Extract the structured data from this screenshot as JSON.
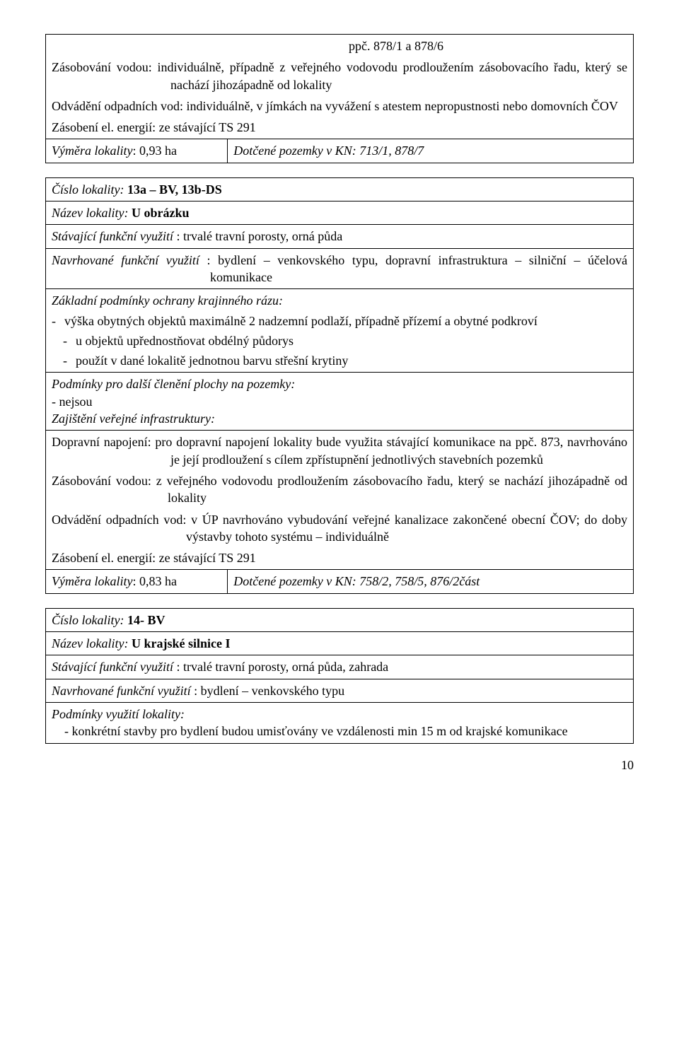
{
  "box1": {
    "ppc_line": "ppč. 878/1 a 878/6",
    "zasob_vodou": "Zásobování vodou: individuálně, případně z veřejného vodovodu prodloužením zásobovacího řadu, který se nachází jihozápadně od lokality",
    "odv_vod": "Odvádění odpadních vod: individuálně, v jímkách na vyvážení s atestem nepropustnosti nebo domovních ČOV",
    "zasob_el": "Zásobení el. energií: ze stávající TS 291",
    "vymera_label": "Výměra lokality",
    "vymera_val": ": 0,93 ha",
    "dotcene": "Dotčené pozemky v KN: 713/1, 878/7"
  },
  "box2": {
    "cislo_label": "Číslo lokality:",
    "cislo_val": " 13a – BV, 13b-DS",
    "nazev_label": "Název lokality:",
    "nazev_val": "   U obrázku",
    "stav_label": "Stávající funkční využití",
    "stav_rest": " : trvalé travní porosty, orná půda",
    "navrh_label": "Navrhované funkční využití",
    "navrh_rest": " : bydlení – venkovského typu, dopravní infrastruktura – silniční – účelová komunikace",
    "zakladni": "Základní podmínky ochrany krajinného rázu:",
    "li1": "výška obytných objektů maximálně 2 nadzemní podlaží, případně přízemí a obytné podkroví",
    "li2": "u objektů upřednostňovat obdélný půdorys",
    "li3": "použít v dané lokalitě jednotnou barvu střešní krytiny",
    "podminky_dalsi": "Podmínky pro další členění plochy na pozemky:",
    "nejsou": "- nejsou",
    "zajisteni": "Zajištění veřejné infrastruktury:",
    "dopr": "Dopravní napojení: pro dopravní napojení lokality bude využita stávající komunikace na ppč. 873, navrhováno je její prodloužení s cílem zpřístupnění jednotlivých stavebních pozemků",
    "zasob_vodou": "Zásobování vodou: z veřejného vodovodu prodloužením zásobovacího řadu, který se nachází jihozápadně od lokality",
    "odv_vod": "Odvádění odpadních vod: v ÚP navrhováno vybudování veřejné kanalizace zakončené obecní ČOV; do doby výstavby tohoto systému – individuálně",
    "zasob_el": "Zásobení el. energií: ze stávající TS 291",
    "vymera_label": "Výměra lokality",
    "vymera_val": ": 0,83 ha",
    "dotcene": "Dotčené pozemky v KN: 758/2, 758/5, 876/2část"
  },
  "box3": {
    "cislo_label": "Číslo lokality:",
    "cislo_val": " 14- BV",
    "nazev_label": "Název lokality:",
    "nazev_val": "   U krajské silnice I",
    "stav_label": "Stávající funkční využití",
    "stav_rest": " : trvalé travní porosty, orná půda, zahrada",
    "navrh_label": "Navrhované funkční využití",
    "navrh_rest": " : bydlení – venkovského typu",
    "podm_vyuziti": "Podmínky využití lokality:",
    "li": "- konkrétní stavby pro bydlení budou umisťovány ve vzdálenosti min 15 m od krajské komunikace"
  },
  "pagenum": "10",
  "layout": {
    "left_col_pct": 31
  }
}
